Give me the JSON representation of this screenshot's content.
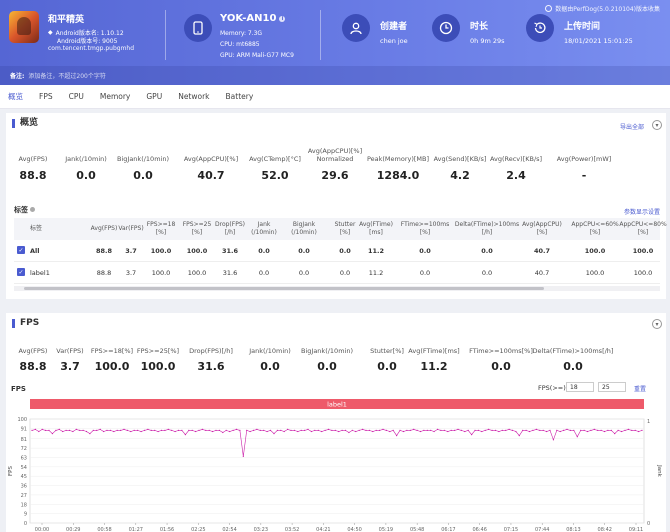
{
  "header": {
    "perfdog": "数据由PerfDog(5.0.210104)版本收集",
    "app": {
      "name": "和平精英",
      "android_version": "Android版本名: 1.10.12",
      "android_code": "Android版本号: 9005",
      "package": "com.tencent.tmgp.pubgmhd"
    },
    "device": {
      "name": "YOK-AN10",
      "memory": "Memory: 7.3G",
      "cpu": "CPU: mt6885",
      "gpu": "GPU: ARM Mali-G77 MC9"
    },
    "creator": {
      "label": "创建者",
      "value": "chen joe"
    },
    "duration": {
      "label": "时长",
      "value": "0h 9m 29s"
    },
    "upload": {
      "label": "上传时间",
      "value": "18/01/2021 15:01:25"
    },
    "note_label": "备注:",
    "note_placeholder": "添加备注，不超过200个字符"
  },
  "tabs": [
    "概览",
    "FPS",
    "CPU",
    "Memory",
    "GPU",
    "Network",
    "Battery"
  ],
  "overview": {
    "title": "概览",
    "export_label": "导出全部",
    "metrics": [
      {
        "label": "Avg(FPS)",
        "value": "88.8"
      },
      {
        "label": "Jank(/10min)",
        "value": "0.0"
      },
      {
        "label": "BigJank(/10min)",
        "value": "0.0"
      },
      {
        "label": "Avg(AppCPU)[%]",
        "value": "40.7"
      },
      {
        "label": "Avg(CTemp)[°C]",
        "value": "52.0"
      },
      {
        "label": "Avg(AppCPU)[%] Normalized",
        "value": "29.6"
      },
      {
        "label": "Peak(Memory)[MB]",
        "value": "1284.0"
      },
      {
        "label": "Avg(Send)[KB/s]",
        "value": "4.2"
      },
      {
        "label": "Avg(Recv)[KB/s]",
        "value": "2.4"
      },
      {
        "label": "Avg(Power)[mW]",
        "value": "-"
      }
    ]
  },
  "labels_table": {
    "title": "标签",
    "settings_label": "参数显示设置",
    "columns": [
      "标签",
      "Avg(FPS)",
      "Var(FPS)",
      "FPS>=18 [%]",
      "FPS>=25 [%]",
      "Drop(FPS) [/h]",
      "Jank (/10min)",
      "BigJank (/10min)",
      "Stutter [%]",
      "Avg(FTime) [ms]",
      "FTime>=100ms [%]",
      "Delta(FTime)>100ms [/h]",
      "Avg(AppCPU) [%]",
      "AppCPU<=60% [%]",
      "AppCPU<=80% [%]"
    ],
    "rows": [
      {
        "name": "All",
        "cells": [
          "88.8",
          "3.7",
          "100.0",
          "100.0",
          "31.6",
          "0.0",
          "0.0",
          "0.0",
          "11.2",
          "0.0",
          "0.0",
          "40.7",
          "100.0",
          "100.0"
        ]
      },
      {
        "name": "label1",
        "cells": [
          "88.8",
          "3.7",
          "100.0",
          "100.0",
          "31.6",
          "0.0",
          "0.0",
          "0.0",
          "11.2",
          "0.0",
          "0.0",
          "40.7",
          "100.0",
          "100.0"
        ]
      }
    ]
  },
  "fps_section": {
    "title": "FPS",
    "metrics": [
      {
        "label": "Avg(FPS)",
        "value": "88.8"
      },
      {
        "label": "Var(FPS)",
        "value": "3.7"
      },
      {
        "label": "FPS>=18[%]",
        "value": "100.0"
      },
      {
        "label": "FPS>=25[%]",
        "value": "100.0"
      },
      {
        "label": "Drop(FPS)[/h]",
        "value": "31.6"
      },
      {
        "label": "Jank(/10min)",
        "value": "0.0"
      },
      {
        "label": "BigJank(/10min)",
        "value": "0.0"
      },
      {
        "label": "Stutter[%]",
        "value": "0.0"
      },
      {
        "label": "Avg(FTime)[ms]",
        "value": "11.2"
      },
      {
        "label": "FTime>=100ms[%]",
        "value": "0.0"
      },
      {
        "label": "Delta(FTime)>100ms[/h]",
        "value": "0.0"
      }
    ],
    "fps_threshold_label": "FPS(>=)",
    "threshold1": "18",
    "threshold2": "25",
    "reset_label": "重置"
  },
  "chart_data": {
    "type": "line",
    "title": "FPS",
    "label_band": "label1",
    "ylabel": "FPS",
    "y2label": "Jank",
    "ylim": [
      0,
      100
    ],
    "yticks": [
      0,
      9,
      18,
      27,
      36,
      45,
      54,
      63,
      72,
      81,
      91,
      100
    ],
    "y2ticks": [
      0,
      1
    ],
    "x_ticks": [
      "00:00",
      "00:29",
      "00:58",
      "01:27",
      "01:56",
      "02:25",
      "02:54",
      "03:23",
      "03:52",
      "04:21",
      "04:50",
      "05:19",
      "05:48",
      "06:17",
      "06:46",
      "07:15",
      "07:44",
      "08:13",
      "08:42",
      "09:11"
    ],
    "series": [
      {
        "color": "#cc22aa",
        "values": [
          89,
          90,
          88,
          90,
          89,
          89,
          86,
          89,
          90,
          88,
          89,
          89,
          88,
          90,
          89,
          89,
          88,
          86,
          89,
          89,
          90,
          88,
          89,
          89,
          88,
          89,
          89,
          90,
          89,
          88,
          89,
          89,
          88,
          89,
          90,
          89,
          89,
          88,
          89,
          89,
          90,
          89,
          88,
          89,
          89,
          85,
          89,
          89,
          88,
          89,
          90,
          89,
          89,
          88,
          89,
          89,
          87,
          89,
          88,
          89,
          90,
          89,
          64,
          89,
          88,
          89,
          90,
          89,
          89,
          88,
          89,
          86,
          89,
          89,
          88,
          90,
          89,
          89,
          88,
          89,
          89,
          90,
          88,
          89,
          89,
          88,
          89,
          90,
          89,
          89,
          88,
          89,
          89,
          87,
          89,
          88,
          89,
          90,
          89,
          89,
          88,
          89,
          89,
          90,
          89,
          88,
          89,
          84,
          89,
          88,
          89,
          89,
          90,
          89,
          88,
          89,
          89,
          89,
          88,
          90,
          89,
          89,
          88,
          89,
          89,
          90,
          89,
          88,
          89,
          85,
          89,
          89,
          88,
          89,
          90,
          89,
          89,
          88,
          89,
          89,
          90,
          89,
          88,
          84,
          89,
          89,
          88,
          89,
          90,
          89,
          89,
          88,
          89,
          80,
          89,
          88,
          89,
          90,
          89,
          89,
          83,
          89,
          89,
          88,
          89,
          90,
          89,
          89,
          88,
          89,
          89,
          86,
          89,
          88,
          89,
          90,
          89,
          89,
          88,
          89
        ]
      }
    ]
  }
}
